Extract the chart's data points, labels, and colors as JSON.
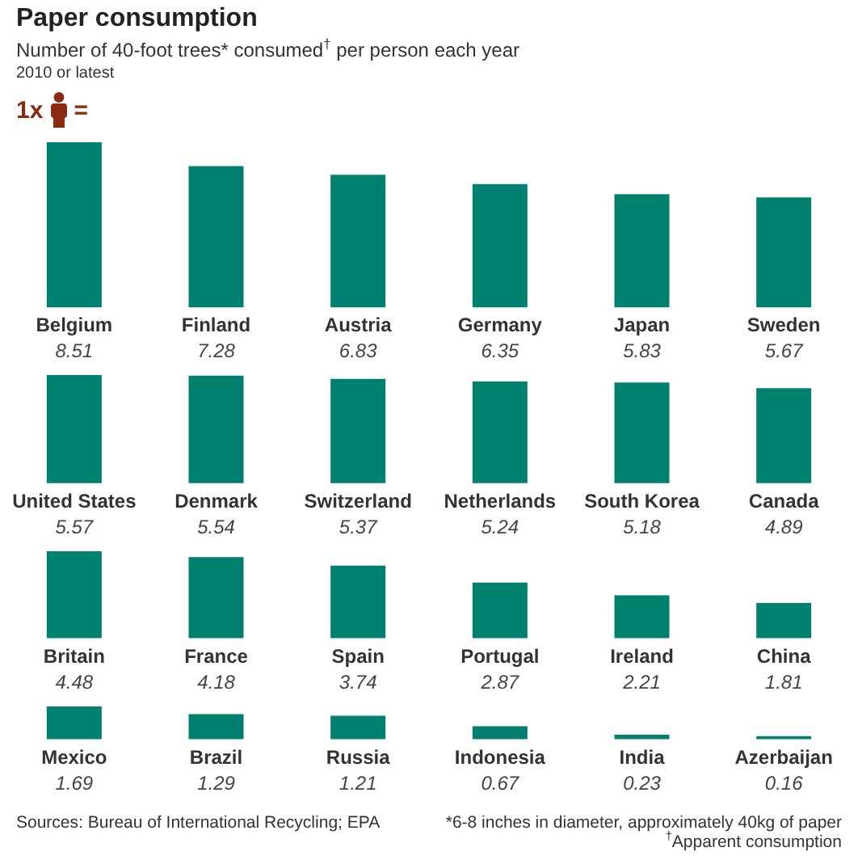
{
  "chart_data": [
    {
      "type": "bar",
      "title": "Paper consumption",
      "subtitle": "Number of 40-foot trees* consumed$^{†}$ per person each year",
      "annotations": [
        "2010 or latest",
        "1x",
        "="
      ],
      "categories": [
        "Belgium",
        "Finland",
        "Austria",
        "Germany",
        "Japan",
        "Sweden"
      ],
      "values": [
        8.51,
        7.28,
        6.83,
        6.35,
        5.83,
        5.67
      ],
      "color": "#00806e",
      "data_labels": true
    },
    {
      "type": "bar",
      "categories": [
        "United States",
        "Denmark",
        "Switzerland",
        "Netherlands",
        "South Korea",
        "Canada"
      ],
      "values": [
        5.57,
        5.54,
        5.37,
        5.24,
        5.18,
        4.89
      ],
      "color": "#00806e",
      "data_labels": true
    },
    {
      "type": "bar",
      "categories": [
        "Britain",
        "France",
        "Spain",
        "Portugal",
        "Ireland",
        "China"
      ],
      "values": [
        4.48,
        4.18,
        3.74,
        2.87,
        2.21,
        1.81
      ],
      "color": "#00806e",
      "data_labels": true
    },
    {
      "type": "bar",
      "annotations": [
        "Sources: Bureau of International Recycling; EPA",
        "*6-8 inches in diameter, approximately 40kg of paper",
        "$^{†}$Apparent consumption"
      ],
      "categories": [
        "Mexico",
        "Brazil",
        "Russia",
        "Indonesia",
        "India",
        "Azerbaijan"
      ],
      "values": [
        1.69,
        1.29,
        1.21,
        0.67,
        0.23,
        0.16
      ],
      "color": "#00806e",
      "data_labels": true
    }
  ]
}
